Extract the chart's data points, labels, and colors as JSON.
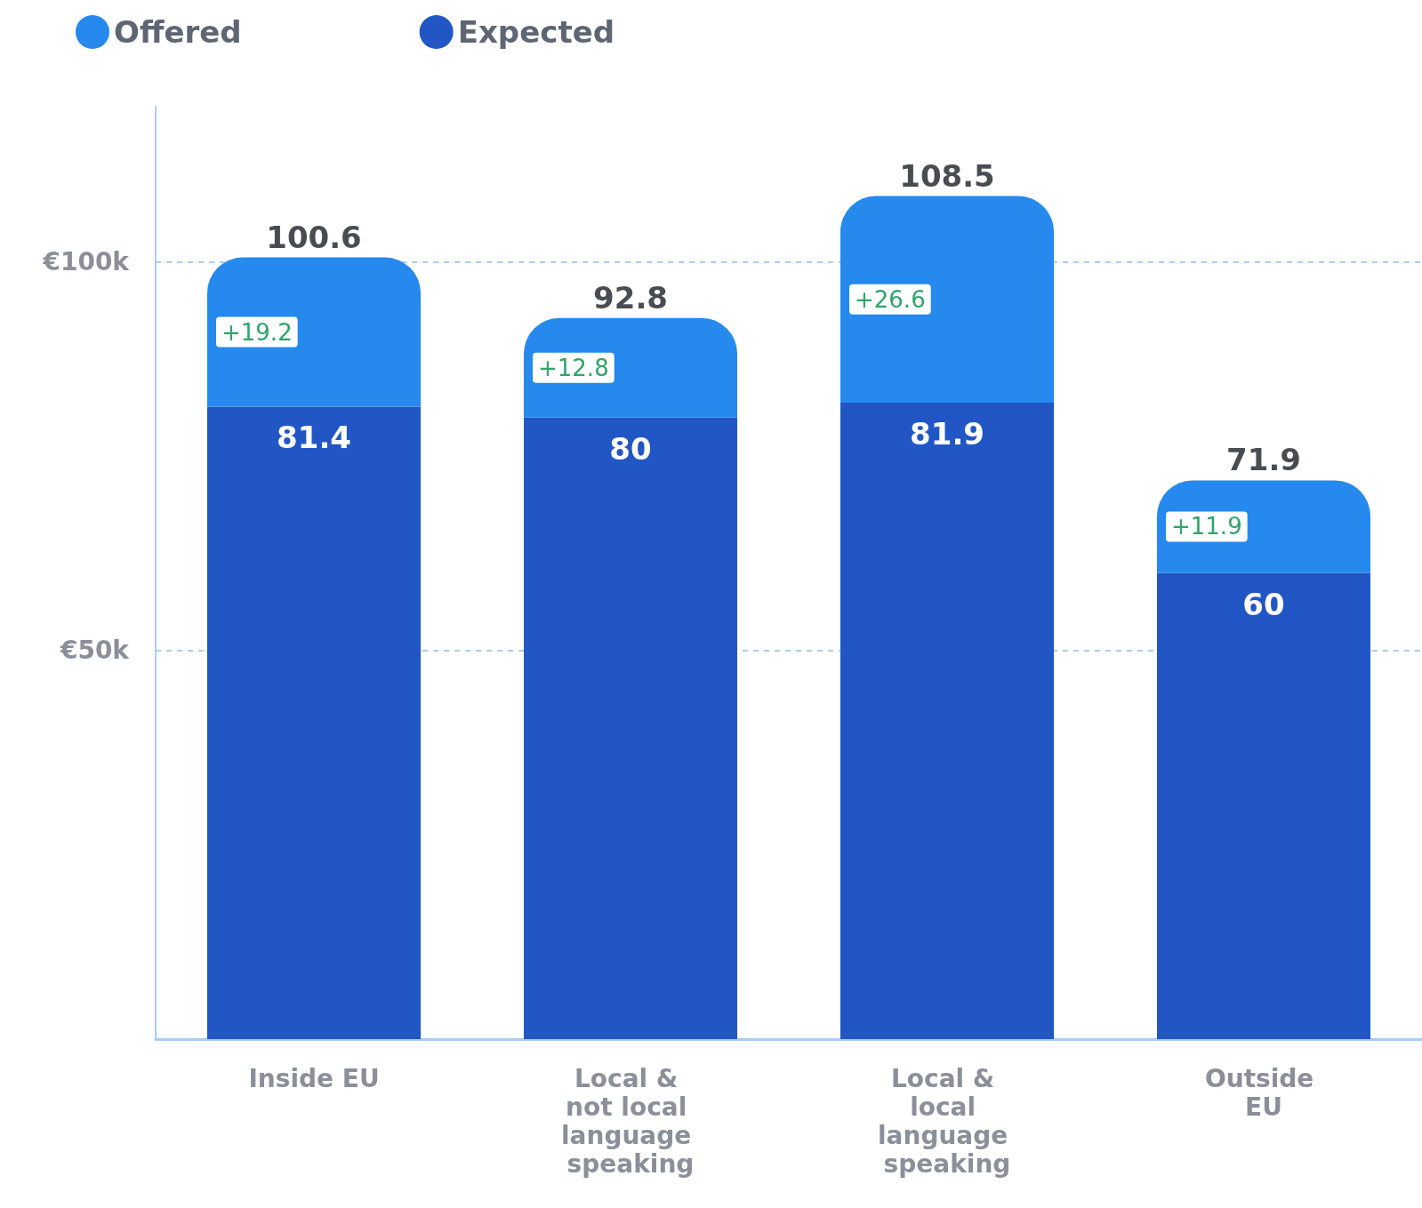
{
  "chart_data": {
    "type": "bar",
    "stacked": true,
    "categories": [
      "Inside EU",
      "Local & not local language speaking",
      "Local & local language speaking",
      "Outside EU"
    ],
    "series": [
      {
        "name": "Expected",
        "color": "#2156c4",
        "values": [
          81.4,
          80,
          81.9,
          60
        ],
        "value_labels": [
          "81.4",
          "80",
          "81.9",
          "60"
        ]
      },
      {
        "name": "Offered",
        "color": "#2689ee",
        "values": [
          19.2,
          12.8,
          26.6,
          11.9
        ],
        "value_labels": [
          "+19.2",
          "+12.8",
          "+26.6",
          "+11.9"
        ]
      }
    ],
    "totals": [
      "100.6",
      "92.8",
      "108.5",
      "71.9"
    ],
    "ylim": [
      0,
      120
    ],
    "yticks": [
      {
        "value": 50,
        "label": "€50k"
      },
      {
        "value": 100,
        "label": "€100k"
      }
    ],
    "grid": "y",
    "legend": "top left"
  }
}
